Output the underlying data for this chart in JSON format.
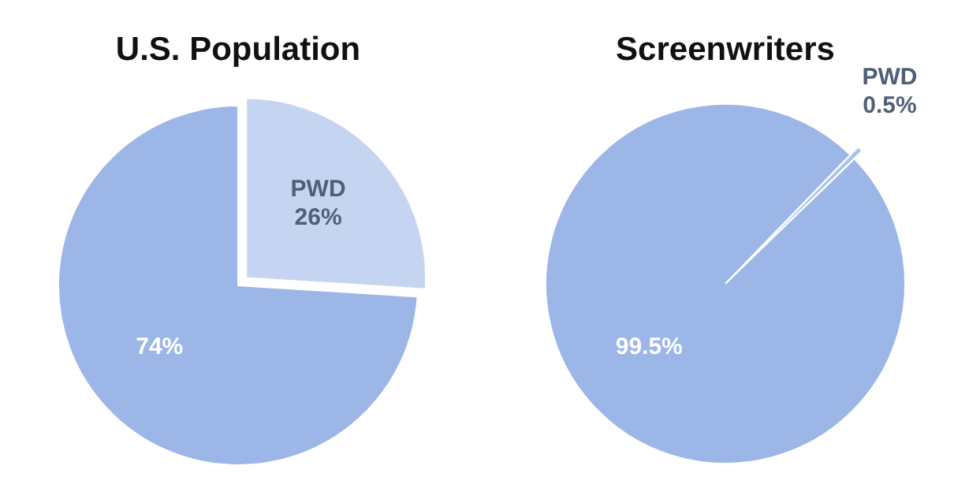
{
  "chart_data": [
    {
      "type": "pie",
      "title": "U.S. Population",
      "categories": [
        "PWD",
        null
      ],
      "values": [
        26,
        74
      ],
      "value_labels": [
        "26%",
        "74%"
      ],
      "colors": [
        "#c5d5f1",
        "#9bb6e7"
      ]
    },
    {
      "type": "pie",
      "title": "Screenwriters",
      "categories": [
        "PWD",
        null
      ],
      "values": [
        0.5,
        99.5
      ],
      "value_labels": [
        "0.5%",
        "99.5%"
      ],
      "colors": [
        "#a9c1ec",
        "#9bb6e7"
      ]
    }
  ]
}
